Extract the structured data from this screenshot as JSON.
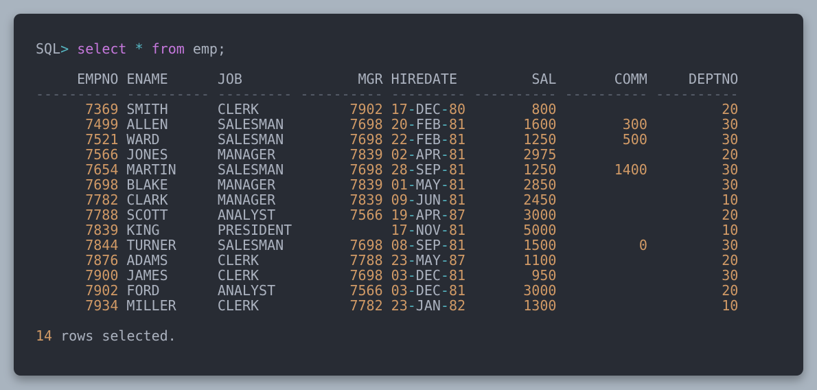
{
  "prompt": {
    "prefix": "SQL",
    "caret": ">",
    "select": "select",
    "star": "*",
    "from": "from",
    "table": "emp;"
  },
  "columns": [
    "EMPNO",
    "ENAME",
    "JOB",
    "MGR",
    "HIREDATE",
    "SAL",
    "COMM",
    "DEPTNO"
  ],
  "divider": "---------- ---------- --------- ---------- --------- ---------- ---------- ----------",
  "rows": [
    {
      "empno": "7369",
      "ename": "SMITH",
      "job": "CLERK",
      "mgr": "7902",
      "hd": [
        "17",
        "DEC",
        "80"
      ],
      "sal": "800",
      "comm": "",
      "deptno": "20"
    },
    {
      "empno": "7499",
      "ename": "ALLEN",
      "job": "SALESMAN",
      "mgr": "7698",
      "hd": [
        "20",
        "FEB",
        "81"
      ],
      "sal": "1600",
      "comm": "300",
      "deptno": "30"
    },
    {
      "empno": "7521",
      "ename": "WARD",
      "job": "SALESMAN",
      "mgr": "7698",
      "hd": [
        "22",
        "FEB",
        "81"
      ],
      "sal": "1250",
      "comm": "500",
      "deptno": "30"
    },
    {
      "empno": "7566",
      "ename": "JONES",
      "job": "MANAGER",
      "mgr": "7839",
      "hd": [
        "02",
        "APR",
        "81"
      ],
      "sal": "2975",
      "comm": "",
      "deptno": "20"
    },
    {
      "empno": "7654",
      "ename": "MARTIN",
      "job": "SALESMAN",
      "mgr": "7698",
      "hd": [
        "28",
        "SEP",
        "81"
      ],
      "sal": "1250",
      "comm": "1400",
      "deptno": "30"
    },
    {
      "empno": "7698",
      "ename": "BLAKE",
      "job": "MANAGER",
      "mgr": "7839",
      "hd": [
        "01",
        "MAY",
        "81"
      ],
      "sal": "2850",
      "comm": "",
      "deptno": "30"
    },
    {
      "empno": "7782",
      "ename": "CLARK",
      "job": "MANAGER",
      "mgr": "7839",
      "hd": [
        "09",
        "JUN",
        "81"
      ],
      "sal": "2450",
      "comm": "",
      "deptno": "10"
    },
    {
      "empno": "7788",
      "ename": "SCOTT",
      "job": "ANALYST",
      "mgr": "7566",
      "hd": [
        "19",
        "APR",
        "87"
      ],
      "sal": "3000",
      "comm": "",
      "deptno": "20"
    },
    {
      "empno": "7839",
      "ename": "KING",
      "job": "PRESIDENT",
      "mgr": "",
      "hd": [
        "17",
        "NOV",
        "81"
      ],
      "sal": "5000",
      "comm": "",
      "deptno": "10"
    },
    {
      "empno": "7844",
      "ename": "TURNER",
      "job": "SALESMAN",
      "mgr": "7698",
      "hd": [
        "08",
        "SEP",
        "81"
      ],
      "sal": "1500",
      "comm": "0",
      "deptno": "30"
    },
    {
      "empno": "7876",
      "ename": "ADAMS",
      "job": "CLERK",
      "mgr": "7788",
      "hd": [
        "23",
        "MAY",
        "87"
      ],
      "sal": "1100",
      "comm": "",
      "deptno": "20"
    },
    {
      "empno": "7900",
      "ename": "JAMES",
      "job": "CLERK",
      "mgr": "7698",
      "hd": [
        "03",
        "DEC",
        "81"
      ],
      "sal": "950",
      "comm": "",
      "deptno": "30"
    },
    {
      "empno": "7902",
      "ename": "FORD",
      "job": "ANALYST",
      "mgr": "7566",
      "hd": [
        "03",
        "DEC",
        "81"
      ],
      "sal": "3000",
      "comm": "",
      "deptno": "20"
    },
    {
      "empno": "7934",
      "ename": "MILLER",
      "job": "CLERK",
      "mgr": "7782",
      "hd": [
        "23",
        "JAN",
        "82"
      ],
      "sal": "1300",
      "comm": "",
      "deptno": "10"
    }
  ],
  "footer": {
    "count": "14",
    "text": "rows selected."
  }
}
